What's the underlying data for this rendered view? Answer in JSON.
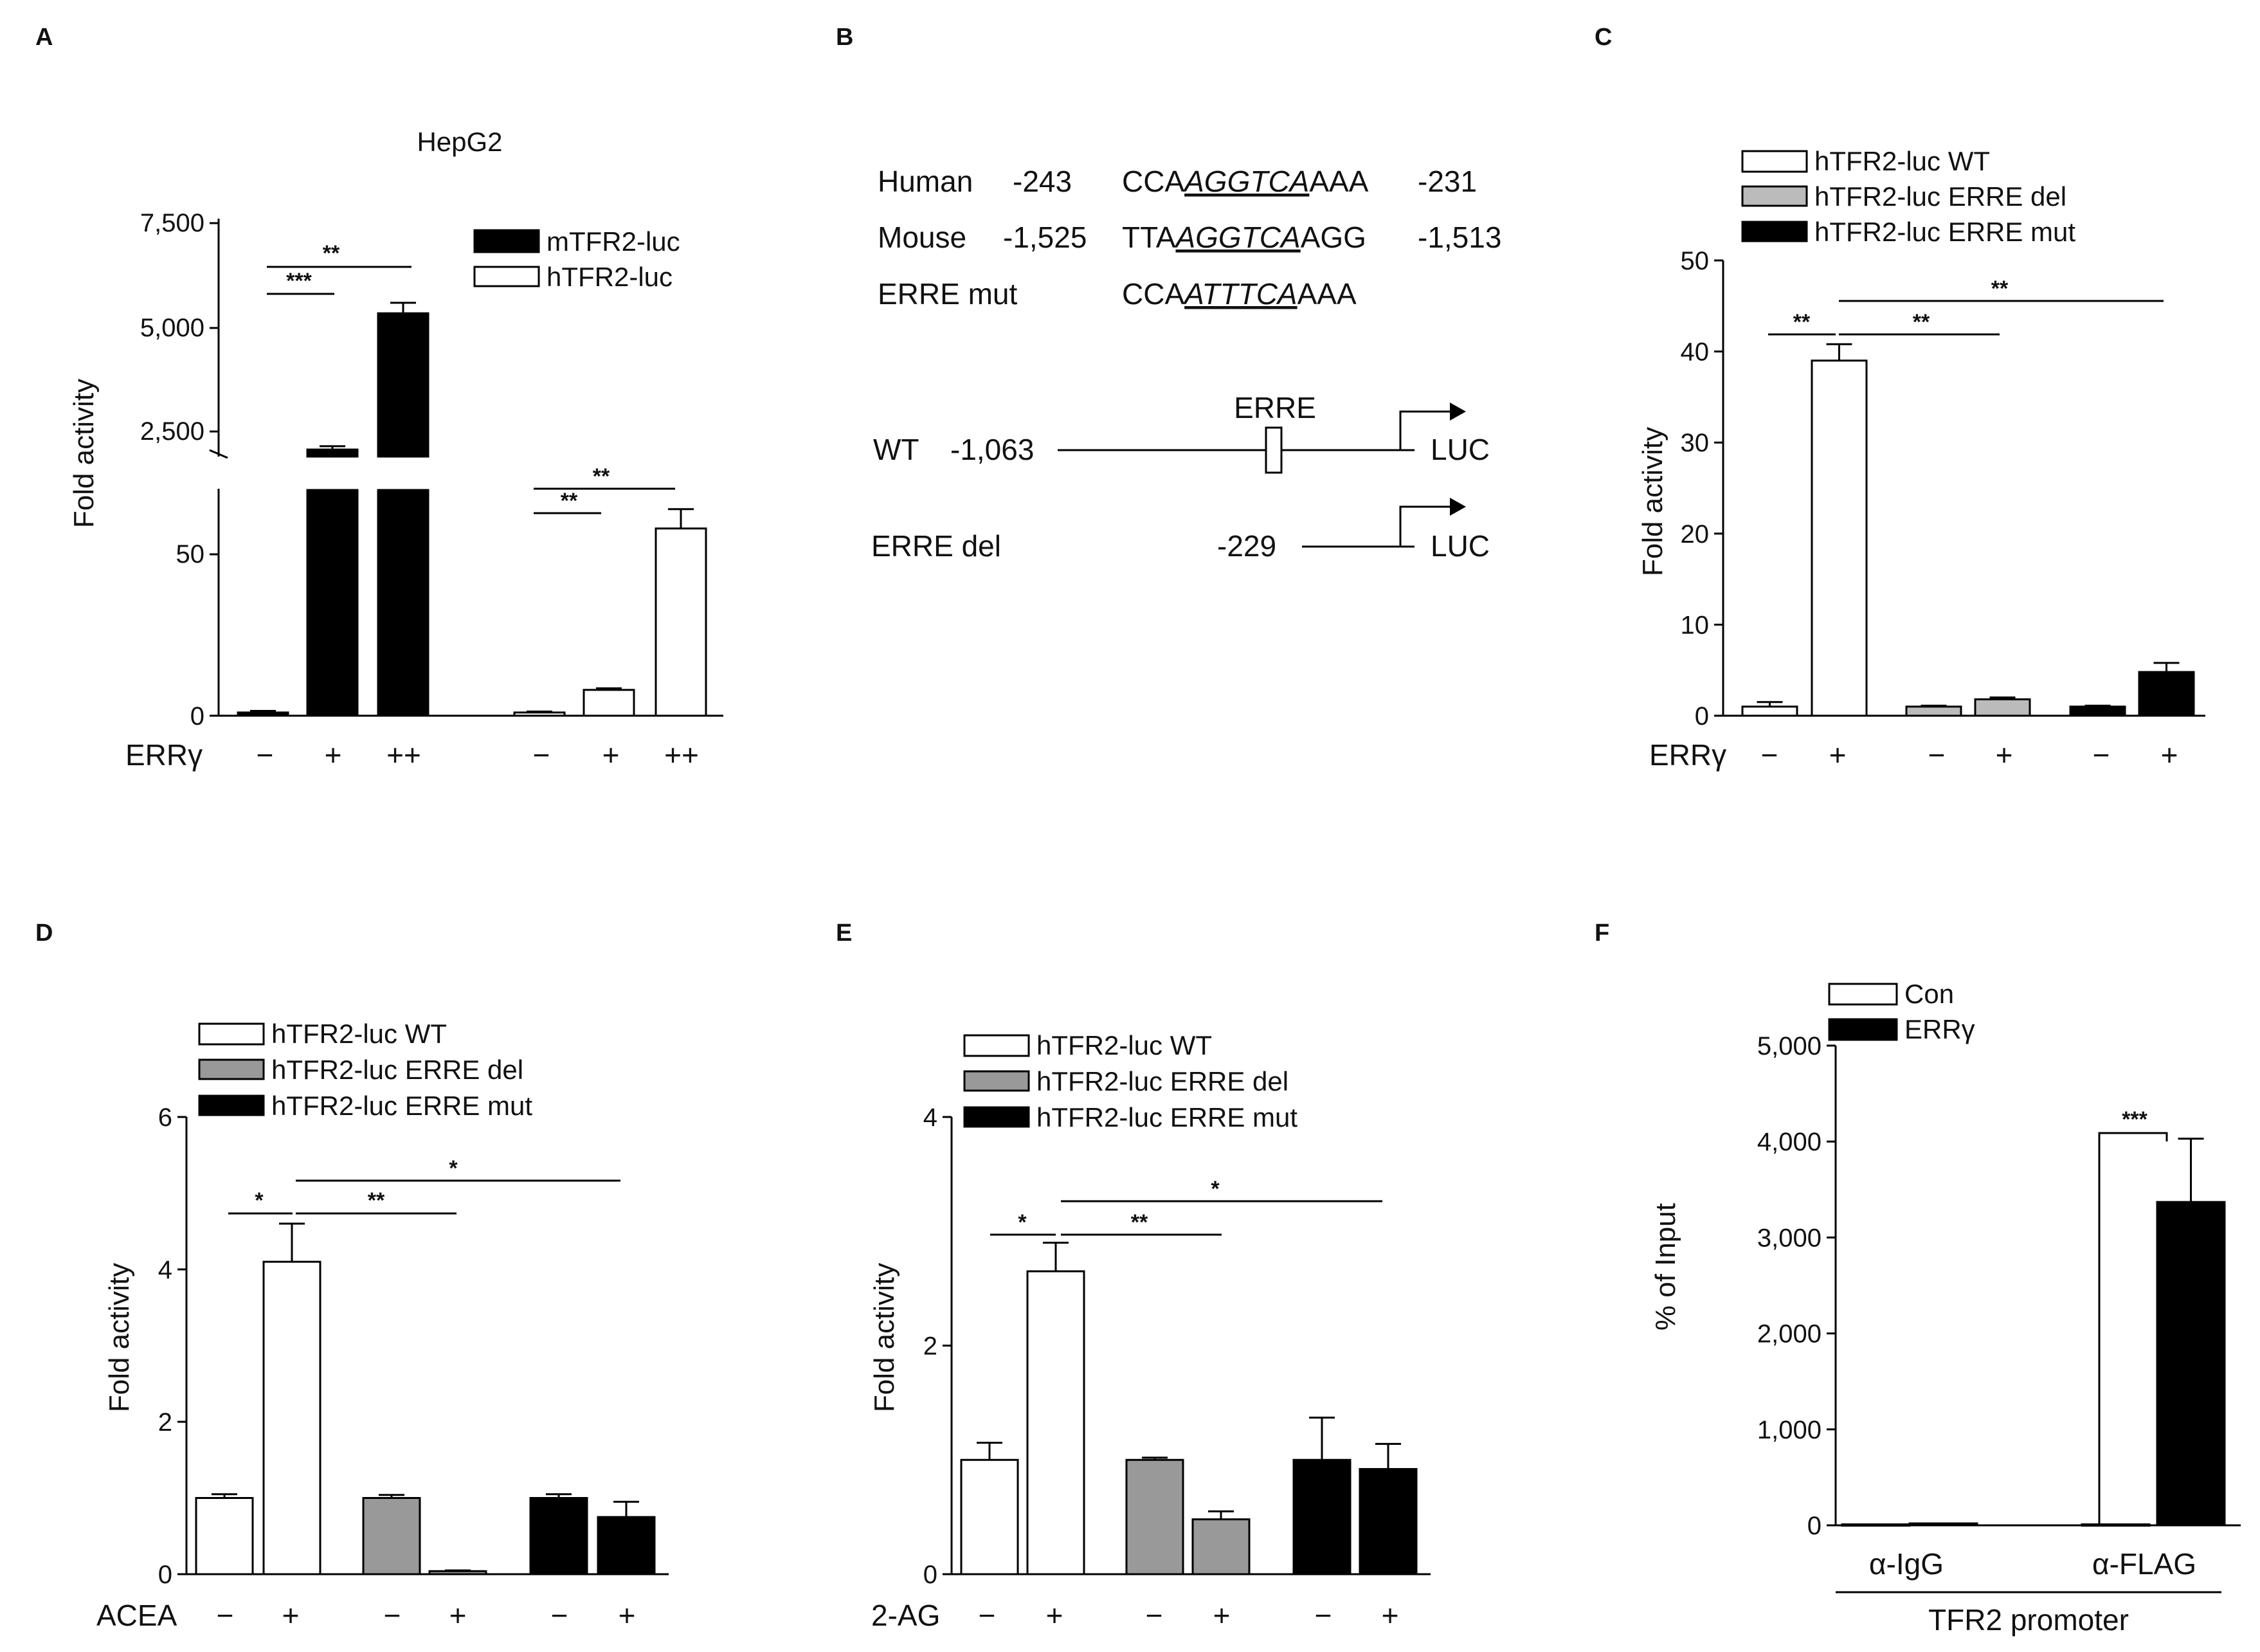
{
  "panels": {
    "A": {
      "label": "A",
      "title": "HepG2",
      "ylabel": "Fold activity",
      "lower_ticks": [
        "0",
        "50"
      ],
      "upper_ticks": [
        "2,500",
        "5,000",
        "7,500"
      ],
      "legend": [
        {
          "name": "mTFR2-luc",
          "color": "#000000"
        },
        {
          "name": "hTFR2-luc",
          "color": "#ffffff"
        }
      ],
      "row_label": "ERRγ",
      "conditions": [
        "−",
        "+",
        "++",
        "−",
        "+",
        "++"
      ],
      "sig": [
        "**",
        "***",
        "**",
        "**"
      ]
    },
    "B": {
      "label": "B",
      "rows": [
        {
          "name": "Human",
          "start": "-243",
          "pre": "CCA",
          "motif": "AGGTCA",
          "post": "AAA",
          "end": "-231"
        },
        {
          "name": "Mouse",
          "start": "-1,525",
          "pre": "TTA",
          "motif": "AGGTCA",
          "post": "AGG",
          "end": "-1,513"
        },
        {
          "name": "ERRE mut",
          "start": "",
          "pre": "CCA",
          "motif": "ATTTCA",
          "post": "AAA",
          "end": ""
        }
      ],
      "constructs": [
        {
          "name": "WT",
          "start": "-1,063",
          "element": "ERRE",
          "reporter": "LUC"
        },
        {
          "name": "ERRE del",
          "start": "-229",
          "reporter": "LUC"
        }
      ]
    },
    "C": {
      "label": "C",
      "ylabel": "Fold activity",
      "legend": [
        {
          "name": "hTFR2-luc WT",
          "color": "#ffffff"
        },
        {
          "name": "hTFR2-luc ERRE del",
          "color": "#bbbbbb"
        },
        {
          "name": "hTFR2-luc ERRE mut",
          "color": "#000000"
        }
      ],
      "row_label": "ERRγ",
      "conditions": [
        "−",
        "+",
        "−",
        "+",
        "−",
        "+"
      ],
      "sig": [
        "**",
        "**",
        "**"
      ]
    },
    "D": {
      "label": "D",
      "ylabel": "Fold activity",
      "legend": [
        {
          "name": "hTFR2-luc WT",
          "color": "#ffffff"
        },
        {
          "name": "hTFR2-luc ERRE del",
          "color": "#999999"
        },
        {
          "name": "hTFR2-luc ERRE mut",
          "color": "#000000"
        }
      ],
      "row_label": "ACEA",
      "conditions": [
        "−",
        "+",
        "−",
        "+",
        "−",
        "+"
      ],
      "sig": [
        "*",
        "**",
        "*"
      ]
    },
    "E": {
      "label": "E",
      "ylabel": "Fold activity",
      "legend": [
        {
          "name": "hTFR2-luc WT",
          "color": "#ffffff"
        },
        {
          "name": "hTFR2-luc ERRE del",
          "color": "#999999"
        },
        {
          "name": "hTFR2-luc ERRE mut",
          "color": "#000000"
        }
      ],
      "row_label": "2-AG",
      "conditions": [
        "−",
        "+",
        "−",
        "+",
        "−",
        "+"
      ],
      "sig": [
        "*",
        "**",
        "*"
      ]
    },
    "F": {
      "label": "F",
      "ylabel": "% of Input",
      "legend": [
        {
          "name": "Con",
          "color": "#ffffff"
        },
        {
          "name": "ERRγ",
          "color": "#000000"
        }
      ],
      "groups": [
        "α-IgG",
        "α-FLAG"
      ],
      "footer": "TFR2 promoter",
      "sig": [
        "***"
      ]
    }
  },
  "chart_data": [
    {
      "panel": "A",
      "type": "bar",
      "title": "HepG2",
      "ylabel": "Fold activity",
      "axis_break": true,
      "lower_ylim": [
        0,
        70
      ],
      "upper_ylim": [
        1800,
        7500
      ],
      "lower_ticks": [
        0,
        50
      ],
      "upper_ticks": [
        2500,
        5000,
        7500
      ],
      "bars": [
        {
          "series": "mTFR2-luc",
          "condition": "−",
          "value": 1,
          "err": 0.5
        },
        {
          "series": "mTFR2-luc",
          "condition": "+",
          "value": 2100,
          "err": 80
        },
        {
          "series": "mTFR2-luc",
          "condition": "++",
          "value": 5350,
          "err": 250
        },
        {
          "series": "hTFR2-luc",
          "condition": "−",
          "value": 1,
          "err": 0.3
        },
        {
          "series": "hTFR2-luc",
          "condition": "+",
          "value": 8,
          "err": 0.5
        },
        {
          "series": "hTFR2-luc",
          "condition": "++",
          "value": 58,
          "err": 6
        }
      ]
    },
    {
      "panel": "C",
      "type": "bar",
      "ylabel": "Fold activity",
      "ylim": [
        0,
        50
      ],
      "yticks": [
        0,
        10,
        20,
        30,
        40,
        50
      ],
      "bars": [
        {
          "series": "hTFR2-luc WT",
          "condition": "−",
          "value": 1,
          "err": 0.5
        },
        {
          "series": "hTFR2-luc WT",
          "condition": "+",
          "value": 39,
          "err": 1.8
        },
        {
          "series": "hTFR2-luc ERRE del",
          "condition": "−",
          "value": 1,
          "err": 0.1
        },
        {
          "series": "hTFR2-luc ERRE del",
          "condition": "+",
          "value": 1.8,
          "err": 0.2
        },
        {
          "series": "hTFR2-luc ERRE mut",
          "condition": "−",
          "value": 1,
          "err": 0.1
        },
        {
          "series": "hTFR2-luc ERRE mut",
          "condition": "+",
          "value": 4.8,
          "err": 1
        }
      ]
    },
    {
      "panel": "D",
      "type": "bar",
      "ylabel": "Fold activity",
      "ylim": [
        0,
        6
      ],
      "yticks": [
        0,
        2,
        4,
        6
      ],
      "bars": [
        {
          "series": "hTFR2-luc WT",
          "condition": "−",
          "value": 1,
          "err": 0.05
        },
        {
          "series": "hTFR2-luc WT",
          "condition": "+",
          "value": 4.1,
          "err": 0.5
        },
        {
          "series": "hTFR2-luc ERRE del",
          "condition": "−",
          "value": 1,
          "err": 0.04
        },
        {
          "series": "hTFR2-luc ERRE del",
          "condition": "+",
          "value": 0.04,
          "err": 0.01
        },
        {
          "series": "hTFR2-luc ERRE mut",
          "condition": "−",
          "value": 1,
          "err": 0.05
        },
        {
          "series": "hTFR2-luc ERRE mut",
          "condition": "+",
          "value": 0.75,
          "err": 0.2
        }
      ]
    },
    {
      "panel": "E",
      "type": "bar",
      "ylabel": "Fold activity",
      "ylim": [
        0,
        4
      ],
      "yticks": [
        0,
        2,
        4
      ],
      "bars": [
        {
          "series": "hTFR2-luc WT",
          "condition": "−",
          "value": 1,
          "err": 0.15
        },
        {
          "series": "hTFR2-luc WT",
          "condition": "+",
          "value": 2.65,
          "err": 0.25
        },
        {
          "series": "hTFR2-luc ERRE del",
          "condition": "−",
          "value": 1,
          "err": 0.02
        },
        {
          "series": "hTFR2-luc ERRE del",
          "condition": "+",
          "value": 0.48,
          "err": 0.07
        },
        {
          "series": "hTFR2-luc ERRE mut",
          "condition": "−",
          "value": 1,
          "err": 0.37
        },
        {
          "series": "hTFR2-luc ERRE mut",
          "condition": "+",
          "value": 0.92,
          "err": 0.22
        }
      ]
    },
    {
      "panel": "F",
      "type": "bar",
      "ylabel": "% of Input",
      "ylim": [
        0,
        5000
      ],
      "yticks": [
        0,
        1000,
        2000,
        3000,
        4000,
        5000
      ],
      "bars": [
        {
          "series": "Con",
          "group": "α-IgG",
          "value": 10,
          "err": 0
        },
        {
          "series": "ERRγ",
          "group": "α-IgG",
          "value": 20,
          "err": 0
        },
        {
          "series": "Con",
          "group": "α-FLAG",
          "value": 10,
          "err": 0
        },
        {
          "series": "ERRγ",
          "group": "α-FLAG",
          "value": 3370,
          "err": 660
        }
      ]
    }
  ]
}
